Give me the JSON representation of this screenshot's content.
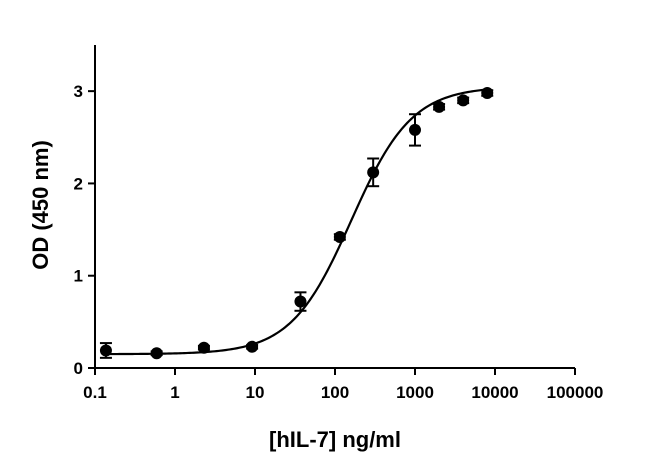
{
  "chart_data": {
    "type": "scatter",
    "title": "",
    "xlabel": "[hIL-7] ng/ml",
    "ylabel": "OD (450 nm)",
    "x_scale": "log",
    "xlim": [
      0.1,
      100000
    ],
    "ylim": [
      0,
      3.5
    ],
    "x_ticks": [
      0.1,
      1,
      10,
      100,
      1000,
      10000,
      100000
    ],
    "x_tick_labels": [
      "0.1",
      "1",
      "10",
      "100",
      "1000",
      "10000",
      "100000"
    ],
    "y_ticks": [
      0,
      1,
      2,
      3
    ],
    "y_tick_labels": [
      "0",
      "1",
      "2",
      "3"
    ],
    "grid": false,
    "legend": "none",
    "colors": {
      "points": "#000000",
      "curve": "#000000",
      "axes": "#000000"
    },
    "series": [
      {
        "points": [
          {
            "x": 0.137,
            "y": 0.19,
            "err": 0.08
          },
          {
            "x": 0.59,
            "y": 0.16,
            "err": 0.02
          },
          {
            "x": 2.3,
            "y": 0.22,
            "err": 0.02
          },
          {
            "x": 9.2,
            "y": 0.23,
            "err": 0.02
          },
          {
            "x": 37,
            "y": 0.72,
            "err": 0.1
          },
          {
            "x": 115,
            "y": 1.42,
            "err": 0.03
          },
          {
            "x": 300,
            "y": 2.12,
            "err": 0.15
          },
          {
            "x": 1000,
            "y": 2.58,
            "err": 0.17
          },
          {
            "x": 2000,
            "y": 2.83,
            "err": 0.03
          },
          {
            "x": 4000,
            "y": 2.9,
            "err": 0.03
          },
          {
            "x": 8000,
            "y": 2.98,
            "err": 0.03
          }
        ]
      }
    ],
    "fit_curve": {
      "model": "4PL",
      "bottom": 0.15,
      "top": 3.05,
      "ec50": 160,
      "hill": 1.15,
      "x_range": [
        0.137,
        8000
      ]
    }
  }
}
